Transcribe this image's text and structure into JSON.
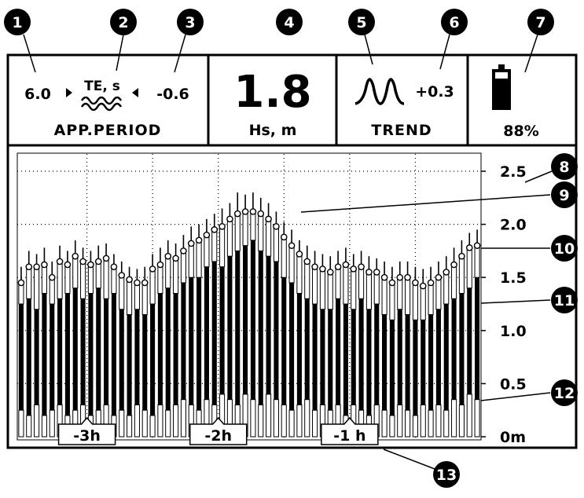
{
  "header": {
    "period_low": "6.0",
    "period_label": "TE, s",
    "period_trend": "-0.6",
    "period_title": "APP.PERIOD",
    "hs_value": "1.8",
    "hs_label": "Hs, m",
    "trend_value": "+0.3",
    "trend_title": "TREND",
    "battery": "88%"
  },
  "callouts": [
    "1",
    "2",
    "3",
    "4",
    "5",
    "6",
    "7",
    "8",
    "9",
    "10",
    "11",
    "12",
    "13"
  ],
  "chart": {
    "ylim": [
      0,
      2.6
    ],
    "yticks": [
      {
        "value": 0,
        "label": "0m"
      },
      0.5,
      {
        "value": 1,
        "label": "1.0"
      },
      1.5,
      {
        "value": 2,
        "label": "2.0"
      },
      2.5
    ],
    "xlim": [
      -3.53,
      0
    ],
    "xgrid": [
      -3,
      -2.5,
      -2,
      -1.5,
      -1,
      -0.5
    ],
    "time_markers": [
      {
        "value": -3,
        "label": "-3h"
      },
      {
        "value": -2,
        "label": "-2h"
      },
      {
        "value": -1,
        "label": "-1 h"
      }
    ],
    "min": [
      0.25,
      0.2,
      0.3,
      0.2,
      0.25,
      0.3,
      0.2,
      0.25,
      0.3,
      0.2,
      0.25,
      0.3,
      0.2,
      0.25,
      0.2,
      0.3,
      0.25,
      0.2,
      0.3,
      0.25,
      0.3,
      0.35,
      0.3,
      0.25,
      0.35,
      0.3,
      0.4,
      0.35,
      0.3,
      0.4,
      0.35,
      0.3,
      0.4,
      0.35,
      0.3,
      0.25,
      0.3,
      0.35,
      0.25,
      0.3,
      0.25,
      0.3,
      0.2,
      0.3,
      0.25,
      0.2,
      0.3,
      0.25,
      0.2,
      0.3,
      0.25,
      0.2,
      0.3,
      0.25,
      0.3,
      0.25,
      0.35,
      0.3,
      0.4,
      0.35
    ],
    "mean": [
      1.25,
      1.3,
      1.2,
      1.35,
      1.25,
      1.3,
      1.35,
      1.4,
      1.3,
      1.35,
      1.4,
      1.3,
      1.35,
      1.2,
      1.15,
      1.2,
      1.15,
      1.25,
      1.35,
      1.4,
      1.35,
      1.45,
      1.5,
      1.5,
      1.6,
      1.65,
      1.6,
      1.7,
      1.75,
      1.8,
      1.85,
      1.75,
      1.7,
      1.65,
      1.5,
      1.45,
      1.35,
      1.3,
      1.25,
      1.2,
      1.2,
      1.3,
      1.25,
      1.2,
      1.3,
      1.2,
      1.25,
      1.15,
      1.1,
      1.2,
      1.15,
      1.1,
      1.1,
      1.15,
      1.2,
      1.25,
      1.3,
      1.35,
      1.4,
      1.5
    ],
    "hs": [
      1.45,
      1.6,
      1.6,
      1.62,
      1.5,
      1.65,
      1.62,
      1.7,
      1.65,
      1.62,
      1.65,
      1.68,
      1.6,
      1.52,
      1.48,
      1.45,
      1.45,
      1.58,
      1.62,
      1.7,
      1.68,
      1.75,
      1.82,
      1.85,
      1.9,
      1.95,
      1.98,
      2.05,
      2.1,
      2.12,
      2.12,
      2.1,
      2.05,
      1.98,
      1.88,
      1.8,
      1.72,
      1.65,
      1.6,
      1.58,
      1.55,
      1.6,
      1.62,
      1.58,
      1.6,
      1.55,
      1.55,
      1.5,
      1.45,
      1.5,
      1.5,
      1.45,
      1.42,
      1.45,
      1.5,
      1.55,
      1.62,
      1.7,
      1.78,
      1.8
    ],
    "max": [
      1.6,
      1.75,
      1.72,
      1.78,
      1.65,
      1.8,
      1.75,
      1.85,
      1.78,
      1.75,
      1.8,
      1.82,
      1.72,
      1.65,
      1.6,
      1.58,
      1.6,
      1.72,
      1.78,
      1.85,
      1.82,
      1.9,
      1.98,
      2.0,
      2.05,
      2.1,
      2.15,
      2.2,
      2.3,
      2.28,
      2.3,
      2.25,
      2.2,
      2.12,
      2.02,
      1.95,
      1.85,
      1.8,
      1.75,
      1.72,
      1.7,
      1.75,
      1.78,
      1.72,
      1.75,
      1.7,
      1.68,
      1.65,
      1.6,
      1.65,
      1.65,
      1.6,
      1.58,
      1.6,
      1.65,
      1.7,
      1.78,
      1.85,
      1.92,
      1.95
    ]
  }
}
